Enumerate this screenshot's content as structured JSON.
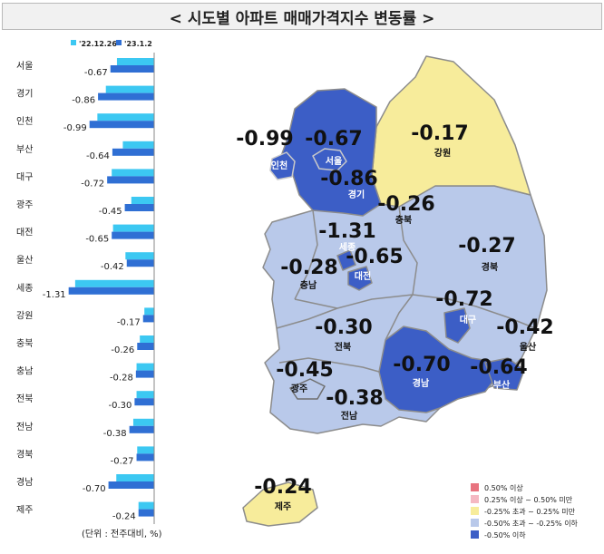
{
  "title": "< 시도별 아파트 매매가격지수 변동률 >",
  "chart_data": {
    "type": "bar",
    "orientation": "horizontal",
    "categories": [
      "서울",
      "경기",
      "인천",
      "부산",
      "대구",
      "광주",
      "대전",
      "울산",
      "세종",
      "강원",
      "충북",
      "충남",
      "전북",
      "전남",
      "경북",
      "경남",
      "제주"
    ],
    "series": [
      {
        "name": "'22.12.26",
        "color": "#3cc8f2",
        "values": [
          -0.57,
          -0.74,
          -0.87,
          -0.48,
          -0.65,
          -0.35,
          -0.63,
          -0.44,
          -1.21,
          -0.15,
          -0.22,
          -0.27,
          -0.27,
          -0.32,
          -0.26,
          -0.58,
          -0.24
        ]
      },
      {
        "name": "'23.1.2",
        "color": "#2f6fd4",
        "values": [
          -0.67,
          -0.86,
          -0.99,
          -0.64,
          -0.72,
          -0.45,
          -0.65,
          -0.42,
          -1.31,
          -0.17,
          -0.26,
          -0.28,
          -0.3,
          -0.38,
          -0.27,
          -0.7,
          -0.24
        ]
      }
    ],
    "data_labels": [
      "-0.67",
      "-0.86",
      "-0.99",
      "-0.64",
      "-0.72",
      "-0.45",
      "-0.65",
      "-0.42",
      "-1.31",
      "-0.17",
      "-0.26",
      "-0.28",
      "-0.30",
      "-0.38",
      "-0.27",
      "-0.70",
      "-0.24"
    ],
    "unit_note": "(단위 : 전주대비, %)",
    "legend_position": "top"
  },
  "map": {
    "regions": [
      {
        "name": "서울",
        "value": "-0.67",
        "cls": "c3"
      },
      {
        "name": "경기",
        "value": "-0.86",
        "cls": "c3"
      },
      {
        "name": "인천",
        "value": "-0.99",
        "cls": "c3"
      },
      {
        "name": "강원",
        "value": "-0.17",
        "cls": "c1"
      },
      {
        "name": "충북",
        "value": "-0.26",
        "cls": "c2"
      },
      {
        "name": "세종",
        "value": "-1.31",
        "cls": "c3"
      },
      {
        "name": "대전",
        "value": "-0.65",
        "cls": "c3"
      },
      {
        "name": "충남",
        "value": "-0.28",
        "cls": "c2"
      },
      {
        "name": "경북",
        "value": "-0.27",
        "cls": "c2"
      },
      {
        "name": "대구",
        "value": "-0.72",
        "cls": "c3"
      },
      {
        "name": "울산",
        "value": "-0.42",
        "cls": "c2"
      },
      {
        "name": "전북",
        "value": "-0.30",
        "cls": "c2"
      },
      {
        "name": "광주",
        "value": "-0.45",
        "cls": "c2"
      },
      {
        "name": "전남",
        "value": "-0.38",
        "cls": "c2"
      },
      {
        "name": "경남",
        "value": "-0.70",
        "cls": "c3"
      },
      {
        "name": "부산",
        "value": "-0.64",
        "cls": "c3"
      },
      {
        "name": "제주",
        "value": "-0.24",
        "cls": "c1"
      }
    ],
    "legend": [
      {
        "label": "0.50% 이상",
        "color": "#e8737f"
      },
      {
        "label": "0.25% 이상 ~ 0.50% 미만",
        "color": "#f5b8c2"
      },
      {
        "label": "-0.25% 초과 ~ 0.25% 미만",
        "color": "#f7ec9b"
      },
      {
        "label": "-0.50% 초과 ~ -0.25% 이하",
        "color": "#b9c9ea"
      },
      {
        "label": "-0.50% 이하",
        "color": "#3c5ec6"
      }
    ]
  }
}
